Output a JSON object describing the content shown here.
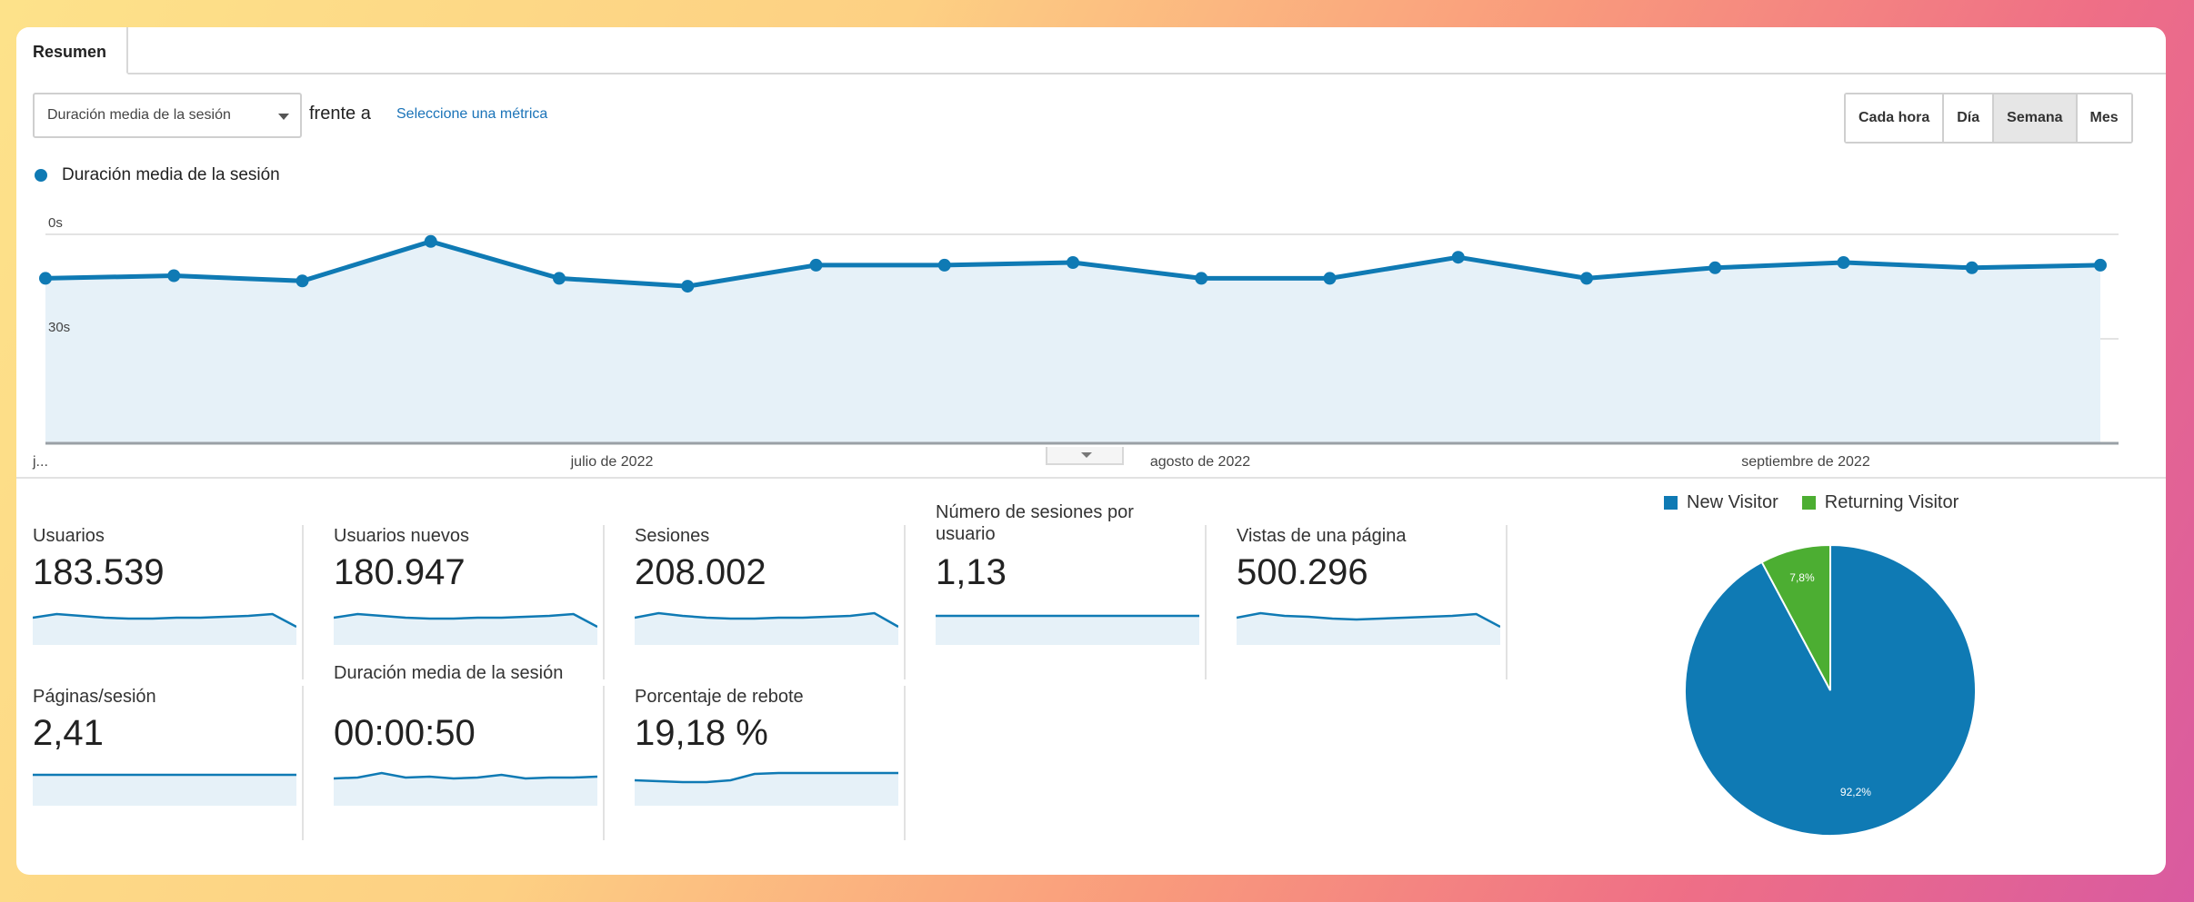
{
  "tab": {
    "label": "Resumen"
  },
  "toolbar": {
    "metric": "Duración media de la sesión",
    "vs": "frente a",
    "select_metric": "Seleccione una métrica",
    "periods": [
      "Cada hora",
      "Día",
      "Semana",
      "Mes"
    ],
    "active_period": "Semana"
  },
  "colors": {
    "primary": "#0f7ab4",
    "fill": "#e6f1f8",
    "returning": "#4cae32"
  },
  "chart_data": [
    {
      "type": "area",
      "series": [
        {
          "name": "Duración media de la sesión",
          "values": [
            52,
            51,
            53,
            38,
            52,
            55,
            47,
            47,
            46,
            52,
            52,
            44,
            52,
            48,
            46,
            48,
            47
          ]
        }
      ],
      "y_tick_labels": [
        "0s",
        "30s"
      ],
      "x_tick_labels": [
        "j...",
        "julio de 2022",
        "agosto de 2022",
        "septiembre de 2022"
      ],
      "y_inverted": true
    },
    {
      "type": "pie",
      "series": [
        {
          "name": "New Visitor",
          "value": 92.2,
          "label": "92,2%"
        },
        {
          "name": "Returning Visitor",
          "value": 7.8,
          "label": "7,8%"
        }
      ]
    }
  ],
  "kpis": [
    {
      "label": "Usuarios",
      "value": "183.539",
      "spark": [
        10,
        6,
        8,
        10,
        11,
        11,
        10,
        10,
        9,
        8,
        6,
        20
      ]
    },
    {
      "label": "Usuarios nuevos",
      "value": "180.947",
      "spark": [
        10,
        6,
        8,
        10,
        11,
        11,
        10,
        10,
        9,
        8,
        6,
        20
      ]
    },
    {
      "label": "Sesiones",
      "value": "208.002",
      "spark": [
        10,
        5,
        8,
        10,
        11,
        11,
        10,
        10,
        9,
        8,
        5,
        20
      ]
    },
    {
      "label": "Número de sesiones por usuario",
      "value": "1,13",
      "spark": [
        8,
        8,
        8,
        8,
        8,
        8,
        8,
        8,
        8,
        8,
        8,
        8
      ]
    },
    {
      "label": "Vistas de una página",
      "value": "500.296",
      "spark": [
        10,
        5,
        8,
        9,
        11,
        12,
        11,
        10,
        9,
        8,
        6,
        20
      ]
    },
    {
      "label": "Páginas/sesión",
      "value": "2,41",
      "spark": [
        6,
        6,
        6,
        6,
        6,
        6,
        6,
        6,
        6,
        6,
        6,
        6
      ]
    },
    {
      "label": "Duración media de la sesión",
      "value": "00:00:50",
      "spark": [
        10,
        9,
        4,
        9,
        8,
        10,
        9,
        6,
        10,
        9,
        9,
        8
      ]
    },
    {
      "label": "Porcentaje de rebote",
      "value": "19,18 %",
      "spark": [
        12,
        13,
        14,
        14,
        12,
        5,
        4,
        4,
        4,
        4,
        4,
        4
      ]
    }
  ]
}
